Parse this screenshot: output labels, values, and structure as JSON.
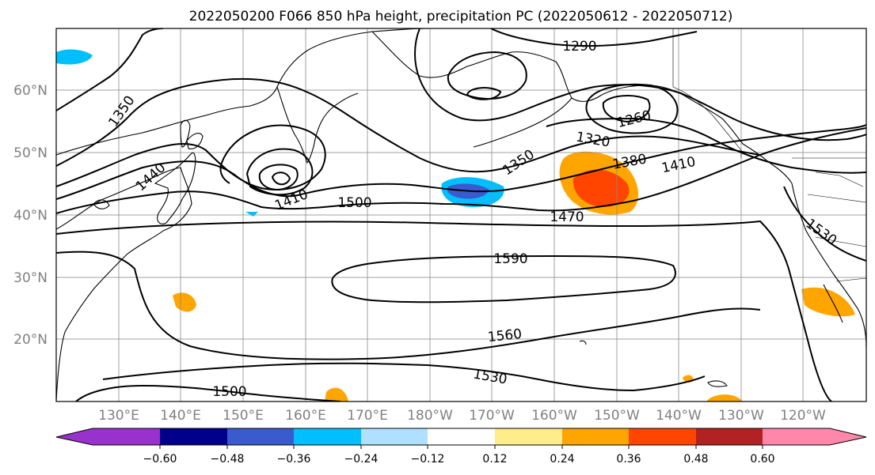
{
  "title": "2022050200 F066 850 hPa height, precipitation PC (2022050612 - 2022050712)",
  "lat_labels": [
    "60°N",
    "50°N",
    "40°N",
    "30°N",
    "20°N"
  ],
  "lon_labels": [
    "130°E",
    "140°E",
    "150°E",
    "160°E",
    "170°E",
    "180°W",
    "170°W",
    "160°W",
    "150°W",
    "140°W",
    "130°W",
    "120°W"
  ],
  "contour_labels": [
    "1290",
    "1260",
    "1320",
    "1350",
    "1380",
    "1410",
    "1350",
    "1440",
    "1410",
    "1500",
    "1470",
    "1530",
    "1590",
    "1560",
    "1530",
    "1500"
  ],
  "colorbar": {
    "colors": [
      "#9932cc",
      "#00008b",
      "#3a5bcd",
      "#00bfff",
      "#b0e0ff",
      "#ffffff",
      "#ffec8b",
      "#ffa500",
      "#ff4500",
      "#b22222",
      "#ff88aa"
    ],
    "tick_labels": [
      "−0.60",
      "−0.48",
      "−0.36",
      "−0.24",
      "−0.12",
      "0.12",
      "0.24",
      "0.36",
      "0.48",
      "0.60"
    ]
  },
  "icons": {
    "map": "north-pacific-map",
    "colorbar": "colorbar-extend-both"
  }
}
